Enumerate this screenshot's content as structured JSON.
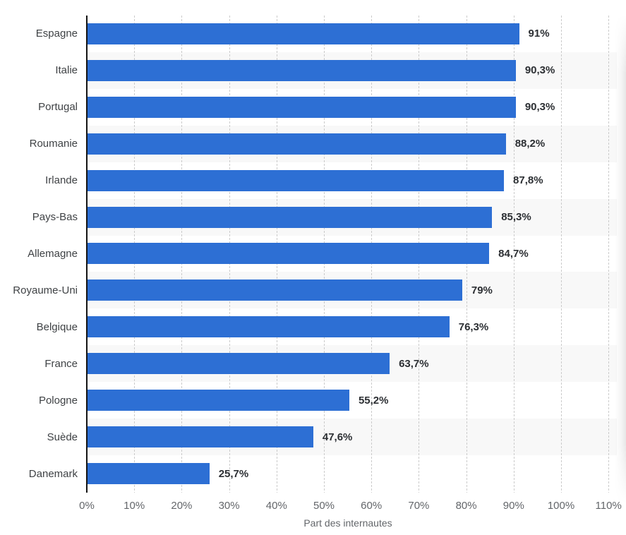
{
  "chart_data": {
    "type": "bar",
    "orientation": "horizontal",
    "title": "",
    "xlabel": "Part des internautes",
    "ylabel": "",
    "categories": [
      "Espagne",
      "Italie",
      "Portugal",
      "Roumanie",
      "Irlande",
      "Pays-Bas",
      "Allemagne",
      "Royaume-Uni",
      "Belgique",
      "France",
      "Pologne",
      "Suède",
      "Danemark"
    ],
    "values": [
      91,
      90.3,
      90.3,
      88.2,
      87.8,
      85.3,
      84.7,
      79,
      76.3,
      63.7,
      55.2,
      47.6,
      25.7
    ],
    "value_labels": [
      "91%",
      "90,3%",
      "90,3%",
      "88,2%",
      "87,8%",
      "85,3%",
      "84,7%",
      "79%",
      "76,3%",
      "63,7%",
      "55,2%",
      "47,6%",
      "25,7%"
    ],
    "x_ticks": [
      "0%",
      "10%",
      "20%",
      "30%",
      "40%",
      "50%",
      "60%",
      "70%",
      "80%",
      "90%",
      "100%",
      "110%"
    ],
    "xlim": [
      0,
      110
    ],
    "grid": "vertical-dotted",
    "legend": "none",
    "row_striping": "alternating"
  },
  "colors": {
    "bar": "#2d6fd4",
    "row_stripe": "#f8f8f8",
    "gridline": "#cbcbcb",
    "axis_line": "#141414",
    "category_label": "#3f4245",
    "value_label": "#2c2f33",
    "tick_label": "#63666a",
    "axis_title": "#63666a"
  }
}
